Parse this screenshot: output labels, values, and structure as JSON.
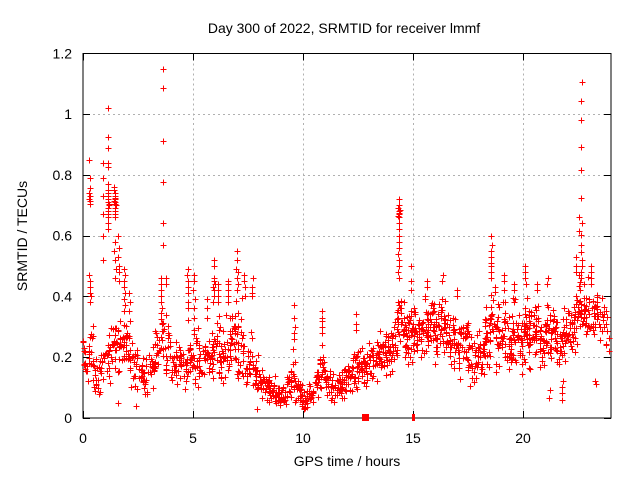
{
  "chart_data": {
    "type": "scatter",
    "title": "Day 300 of 2022, SRMTID for receiver lmmf",
    "xlabel": "GPS time / hours",
    "ylabel": "SRMTID / TECUs",
    "xlim": [
      0,
      24
    ],
    "ylim": [
      0,
      1.2
    ],
    "xticks": {
      "values": [
        0,
        5,
        10,
        15,
        20
      ],
      "labels": [
        "0",
        "5",
        "10",
        "15",
        "20"
      ]
    },
    "yticks": {
      "values": [
        0,
        0.2,
        0.4,
        0.6,
        0.8,
        1.0,
        1.2
      ],
      "labels": [
        "0",
        "0.2",
        "0.4",
        "0.6",
        "0.8",
        "1",
        "1.2"
      ]
    },
    "grid": true,
    "legend": "none",
    "marker": {
      "shape": "plus",
      "size": 7
    },
    "colors": {
      "marker": "#ff0000",
      "grid": "#b0b0b0",
      "border": "#000000",
      "background": "#ffffff",
      "text": "#000000"
    },
    "envelope_bins": [
      [
        0,
        0.08,
        0.28,
        14
      ],
      [
        0.25,
        0.1,
        0.32,
        15
      ],
      [
        0.5,
        0.06,
        0.22,
        14
      ],
      [
        0.75,
        0.08,
        0.26,
        12
      ],
      [
        1,
        0.1,
        0.3,
        14
      ],
      [
        1.25,
        0.12,
        0.32,
        14
      ],
      [
        1.5,
        0.12,
        0.35,
        16
      ],
      [
        1.75,
        0.1,
        0.32,
        16
      ],
      [
        2,
        0.08,
        0.3,
        16
      ],
      [
        2.25,
        0.08,
        0.26,
        14
      ],
      [
        2.5,
        0.08,
        0.22,
        14
      ],
      [
        2.75,
        0.06,
        0.2,
        14
      ],
      [
        3,
        0.08,
        0.24,
        14
      ],
      [
        3.25,
        0.1,
        0.3,
        16
      ],
      [
        3.5,
        0.14,
        0.42,
        18
      ],
      [
        3.75,
        0.12,
        0.36,
        16
      ],
      [
        4,
        0.1,
        0.28,
        16
      ],
      [
        4.25,
        0.1,
        0.25,
        14
      ],
      [
        4.5,
        0.08,
        0.24,
        14
      ],
      [
        4.75,
        0.1,
        0.34,
        16
      ],
      [
        5,
        0.1,
        0.3,
        16
      ],
      [
        5.25,
        0.08,
        0.26,
        14
      ],
      [
        5.5,
        0.1,
        0.3,
        16
      ],
      [
        5.75,
        0.1,
        0.34,
        16
      ],
      [
        6,
        0.12,
        0.36,
        18
      ],
      [
        6.25,
        0.1,
        0.3,
        16
      ],
      [
        6.5,
        0.12,
        0.38,
        18
      ],
      [
        6.75,
        0.12,
        0.4,
        18
      ],
      [
        7,
        0.12,
        0.4,
        18
      ],
      [
        7.25,
        0.1,
        0.32,
        16
      ],
      [
        7.5,
        0.08,
        0.3,
        16
      ],
      [
        7.75,
        0.06,
        0.22,
        16
      ],
      [
        8,
        0.05,
        0.18,
        16
      ],
      [
        8.25,
        0.04,
        0.16,
        16
      ],
      [
        8.5,
        0.04,
        0.14,
        16
      ],
      [
        8.75,
        0.03,
        0.12,
        16
      ],
      [
        9,
        0.03,
        0.12,
        16
      ],
      [
        9.25,
        0.04,
        0.16,
        16
      ],
      [
        9.5,
        0.05,
        0.24,
        16
      ],
      [
        9.75,
        0.03,
        0.13,
        16
      ],
      [
        10,
        0.02,
        0.1,
        16
      ],
      [
        10.25,
        0.03,
        0.12,
        16
      ],
      [
        10.5,
        0.05,
        0.2,
        16
      ],
      [
        10.75,
        0.06,
        0.26,
        16
      ],
      [
        11,
        0.05,
        0.18,
        16
      ],
      [
        11.25,
        0.04,
        0.15,
        14
      ],
      [
        11.5,
        0.05,
        0.16,
        16
      ],
      [
        11.75,
        0.05,
        0.18,
        16
      ],
      [
        12,
        0.06,
        0.2,
        16
      ],
      [
        12.25,
        0.08,
        0.28,
        16
      ],
      [
        12.5,
        0.08,
        0.25,
        16
      ],
      [
        12.75,
        0.08,
        0.22,
        16
      ],
      [
        13,
        0.1,
        0.26,
        16
      ],
      [
        13.25,
        0.1,
        0.28,
        16
      ],
      [
        13.5,
        0.12,
        0.3,
        18
      ],
      [
        13.75,
        0.12,
        0.33,
        18
      ],
      [
        14,
        0.14,
        0.35,
        18
      ],
      [
        14.25,
        0.18,
        0.45,
        20
      ],
      [
        14.5,
        0.15,
        0.4,
        20
      ],
      [
        14.75,
        0.15,
        0.4,
        18
      ],
      [
        15,
        0.18,
        0.4,
        20
      ],
      [
        15.25,
        0.15,
        0.4,
        20
      ],
      [
        15.5,
        0.16,
        0.42,
        20
      ],
      [
        15.75,
        0.18,
        0.42,
        20
      ],
      [
        16,
        0.16,
        0.4,
        20
      ],
      [
        16.25,
        0.18,
        0.44,
        20
      ],
      [
        16.5,
        0.15,
        0.38,
        20
      ],
      [
        16.75,
        0.14,
        0.36,
        18
      ],
      [
        17,
        0.12,
        0.34,
        18
      ],
      [
        17.25,
        0.14,
        0.38,
        18
      ],
      [
        17.5,
        0.1,
        0.35,
        18
      ],
      [
        17.75,
        0.08,
        0.3,
        16
      ],
      [
        18,
        0.12,
        0.32,
        18
      ],
      [
        18.25,
        0.14,
        0.4,
        18
      ],
      [
        18.5,
        0.16,
        0.45,
        20
      ],
      [
        18.75,
        0.14,
        0.38,
        18
      ],
      [
        19,
        0.14,
        0.4,
        18
      ],
      [
        19.25,
        0.12,
        0.35,
        18
      ],
      [
        19.5,
        0.14,
        0.4,
        18
      ],
      [
        19.75,
        0.14,
        0.36,
        18
      ],
      [
        20,
        0.15,
        0.42,
        20
      ],
      [
        20.25,
        0.15,
        0.38,
        18
      ],
      [
        20.5,
        0.18,
        0.42,
        20
      ],
      [
        20.75,
        0.15,
        0.36,
        18
      ],
      [
        21,
        0.18,
        0.42,
        20
      ],
      [
        21.25,
        0.18,
        0.38,
        18
      ],
      [
        21.5,
        0.14,
        0.35,
        18
      ],
      [
        21.75,
        0.16,
        0.38,
        18
      ],
      [
        22,
        0.18,
        0.4,
        18
      ],
      [
        22.25,
        0.2,
        0.44,
        18
      ],
      [
        22.5,
        0.25,
        0.5,
        18
      ],
      [
        22.75,
        0.24,
        0.48,
        18
      ],
      [
        23,
        0.22,
        0.46,
        16
      ],
      [
        23.25,
        0.24,
        0.45,
        14
      ],
      [
        23.5,
        0.22,
        0.42,
        12
      ],
      [
        23.75,
        0.2,
        0.36,
        8
      ]
    ],
    "columns": [
      [
        0.3,
        [
          0.705,
          0.715,
          0.72,
          0.73,
          0.74,
          0.755,
          0.79,
          0.85
        ]
      ],
      [
        0.32,
        [
          0.38,
          0.4,
          0.41,
          0.43,
          0.45,
          0.47
        ]
      ],
      [
        0.92,
        [
          0.52,
          0.6,
          0.67,
          0.73,
          0.79,
          0.84
        ]
      ],
      [
        1.14,
        [
          0.62,
          0.64,
          0.66,
          0.67,
          0.68,
          0.69,
          0.7,
          0.705,
          0.71,
          0.72,
          0.73,
          0.74,
          0.75,
          0.77,
          0.825,
          0.838,
          0.888,
          0.924,
          1.02
        ]
      ],
      [
        1.45,
        [
          0.46,
          0.49,
          0.52,
          0.55,
          0.58,
          0.66,
          0.67,
          0.68,
          0.69,
          0.7,
          0.705,
          0.71,
          0.715,
          0.72,
          0.725,
          0.73,
          0.74,
          0.75,
          0.76
        ]
      ],
      [
        1.6,
        [
          0.05
        ]
      ],
      [
        1.62,
        [
          0.45,
          0.48,
          0.5,
          0.53,
          0.56,
          0.6
        ]
      ],
      [
        1.9,
        [
          0.35,
          0.37,
          0.39,
          0.41,
          0.43,
          0.45,
          0.47,
          0.49
        ]
      ],
      [
        2.1,
        [
          0.32,
          0.35,
          0.38,
          0.41
        ]
      ],
      [
        2.4,
        [
          0.04
        ]
      ],
      [
        3.55,
        [
          0.38,
          0.4,
          0.42,
          0.44,
          0.46
        ]
      ],
      [
        3.64,
        [
          0.57,
          0.641,
          0.776,
          0.911,
          1.084,
          1.147
        ]
      ],
      [
        3.8,
        [
          0.44,
          0.46
        ]
      ],
      [
        4.77,
        [
          0.36,
          0.38,
          0.41,
          0.43,
          0.45,
          0.47,
          0.49
        ]
      ],
      [
        5.05,
        [
          0.33,
          0.36,
          0.39,
          0.42,
          0.45,
          0.47
        ]
      ],
      [
        5.6,
        [
          0.33,
          0.36,
          0.39
        ]
      ],
      [
        5.95,
        [
          0.38,
          0.4,
          0.42,
          0.43,
          0.44,
          0.45,
          0.46,
          0.5,
          0.52
        ]
      ],
      [
        6.15,
        [
          0.38,
          0.4,
          0.42,
          0.44
        ]
      ],
      [
        6.6,
        [
          0.38,
          0.4,
          0.42,
          0.44,
          0.45
        ]
      ],
      [
        7.0,
        [
          0.42,
          0.44,
          0.46,
          0.48,
          0.49,
          0.52,
          0.55
        ]
      ],
      [
        7.35,
        [
          0.4,
          0.43,
          0.45,
          0.47
        ]
      ],
      [
        7.7,
        [
          0.4,
          0.41,
          0.43,
          0.46
        ]
      ],
      [
        7.9,
        [
          0.03
        ]
      ],
      [
        9.62,
        [
          0.26,
          0.28,
          0.3,
          0.33,
          0.37
        ]
      ],
      [
        10.85,
        [
          0.28,
          0.3,
          0.32,
          0.33,
          0.35
        ]
      ],
      [
        12.4,
        [
          0.29,
          0.31,
          0.34
        ]
      ],
      [
        14.36,
        [
          0.46,
          0.48,
          0.5,
          0.52,
          0.54,
          0.56,
          0.58,
          0.6,
          0.62,
          0.64,
          0.66,
          0.665,
          0.67,
          0.675,
          0.68,
          0.685,
          0.69,
          0.7,
          0.72
        ]
      ],
      [
        14.9,
        [
          0.42,
          0.45,
          0.5
        ]
      ],
      [
        15.6,
        [
          0.43,
          0.45
        ]
      ],
      [
        16.35,
        [
          0.45,
          0.47
        ]
      ],
      [
        17.0,
        [
          0.4,
          0.42
        ]
      ],
      [
        18.55,
        [
          0.46,
          0.48,
          0.5,
          0.51,
          0.53,
          0.55,
          0.57,
          0.6
        ]
      ],
      [
        19.15,
        [
          0.42,
          0.45,
          0.47
        ]
      ],
      [
        19.6,
        [
          0.42,
          0.44
        ]
      ],
      [
        20.1,
        [
          0.44,
          0.46,
          0.48,
          0.5
        ]
      ],
      [
        20.65,
        [
          0.42,
          0.44
        ]
      ],
      [
        21.1,
        [
          0.44,
          0.46
        ]
      ],
      [
        21.2,
        [
          0.065,
          0.09
        ]
      ],
      [
        21.8,
        [
          0.06,
          0.08,
          0.1,
          0.12
        ]
      ],
      [
        22.4,
        [
          0.48,
          0.5,
          0.53
        ]
      ],
      [
        22.55,
        [
          0.615,
          0.66
        ]
      ],
      [
        22.65,
        [
          0.46,
          0.48,
          0.5,
          0.52,
          0.545,
          0.569,
          0.602,
          0.64,
          0.722,
          0.816,
          0.89,
          0.98,
          1.044,
          1.106
        ]
      ],
      [
        23.1,
        [
          0.44,
          0.46,
          0.48,
          0.5
        ]
      ],
      [
        23.3,
        [
          0.11,
          0.12
        ]
      ]
    ],
    "axis_markers": [
      {
        "hour": 12.84,
        "value": 0,
        "width": 7
      },
      {
        "hour": 15.02,
        "value": 0,
        "width": 3
      }
    ]
  }
}
